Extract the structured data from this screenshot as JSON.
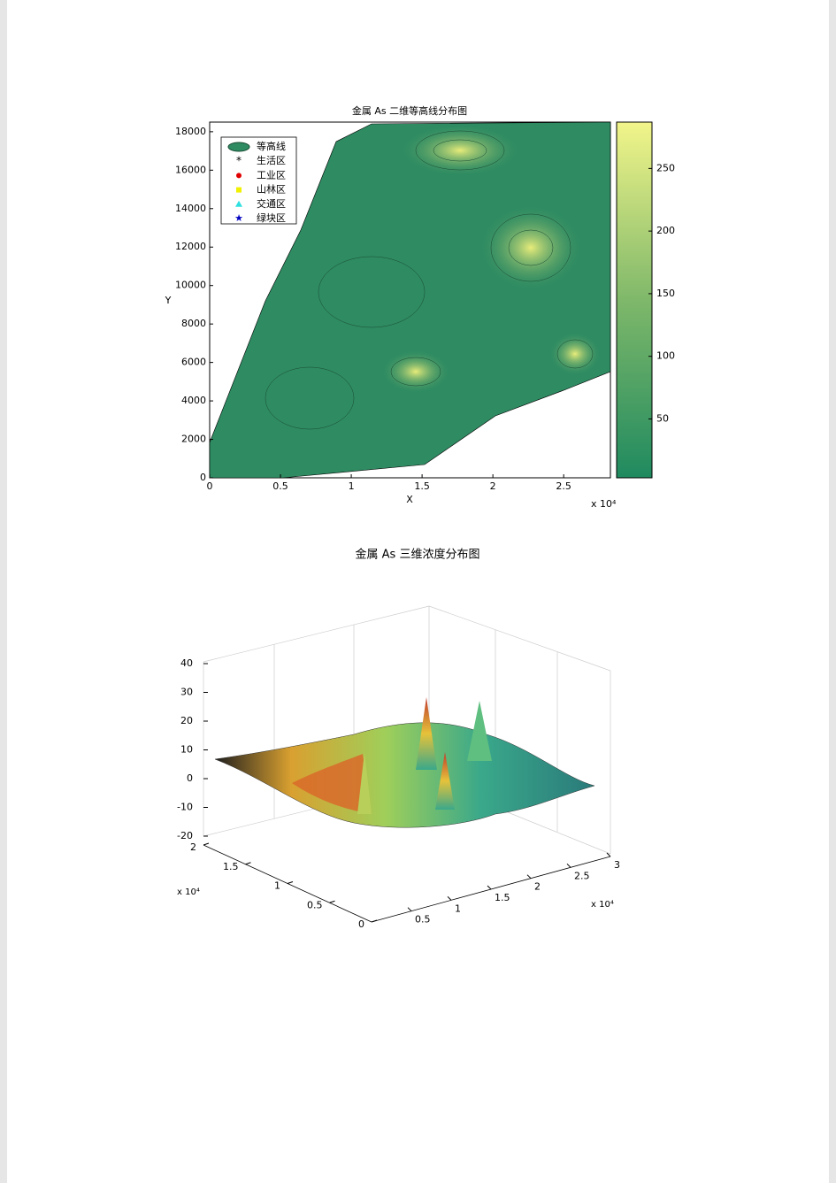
{
  "figure1": {
    "title": "金属 As 二维等高线分布图",
    "xlabel": "X",
    "ylabel": "Y",
    "x_multiplier": "x 10⁴",
    "xlim": [
      0,
      2.83
    ],
    "xticks": [
      0,
      0.5,
      1,
      1.5,
      2,
      2.5
    ],
    "ylim": [
      0,
      18500
    ],
    "yticks": [
      0,
      2000,
      4000,
      6000,
      8000,
      10000,
      12000,
      14000,
      16000,
      18000
    ],
    "clim": [
      3,
      287
    ],
    "cticks": [
      50,
      100,
      150,
      200,
      250
    ],
    "legend": [
      "等高线",
      "生活区",
      "工业区",
      "山林区",
      "交通区",
      "绿块区"
    ]
  },
  "figure2": {
    "caption": "金属 As 三维浓度分布图",
    "zlim": [
      -20,
      40
    ],
    "zticks": [
      -20,
      -10,
      0,
      10,
      20,
      30,
      40
    ],
    "ylim": [
      0,
      2
    ],
    "yticks": [
      0,
      0.5,
      1,
      1.5,
      2
    ],
    "y_multiplier": "x 10⁴",
    "xlim": [
      0,
      3
    ],
    "xticks": [
      0.5,
      1,
      1.5,
      2,
      2.5,
      3
    ],
    "x_multiplier": "x 10⁴"
  }
}
